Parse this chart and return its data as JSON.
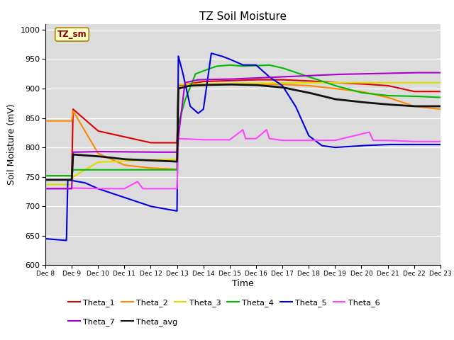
{
  "title": "TZ Soil Moisture",
  "ylabel": "Soil Moisture (mV)",
  "xlabel": "Time",
  "ylim": [
    600,
    1010
  ],
  "yticks": [
    600,
    650,
    700,
    750,
    800,
    850,
    900,
    950,
    1000
  ],
  "bg_color": "#dcdcdc",
  "legend_label": "TZ_sm",
  "line_colors": {
    "Theta_1": "#dd0000",
    "Theta_2": "#ff8800",
    "Theta_3": "#dddd00",
    "Theta_4": "#00bb00",
    "Theta_5": "#0000dd",
    "Theta_6": "#ff44ff",
    "Theta_7": "#aa00cc",
    "Theta_avg": "#111111"
  },
  "x_tick_labels": [
    "Dec 8",
    "Dec 9",
    "Dec 10",
    "Dec 11",
    "Dec 12",
    "Dec 13",
    "Dec 14",
    "Dec 15",
    "Dec 16",
    "Dec 17",
    "Dec 18",
    "Dec 19",
    "Dec 20",
    "Dec 21",
    "Dec 22",
    "Dec 23"
  ],
  "figsize": [
    6.4,
    4.8
  ],
  "dpi": 100
}
